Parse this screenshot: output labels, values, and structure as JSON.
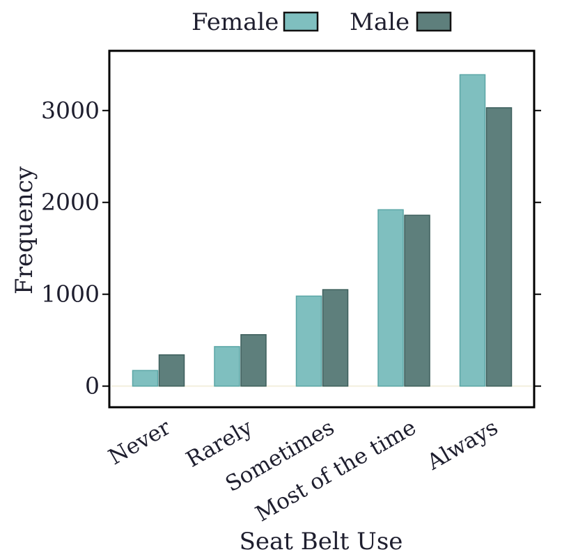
{
  "chart_data": {
    "type": "bar",
    "categories": [
      "Never",
      "Rarely",
      "Sometimes",
      "Most of the time",
      "Always"
    ],
    "series": [
      {
        "name": "Female",
        "values": [
          170,
          430,
          980,
          1920,
          3390
        ]
      },
      {
        "name": "Male",
        "values": [
          340,
          560,
          1050,
          1860,
          3030
        ]
      }
    ],
    "xlabel": "Seat Belt Use",
    "ylabel": "Frequency",
    "ylim": [
      -230,
      3650
    ],
    "yticks": [
      0,
      1000,
      2000,
      3000
    ],
    "ytick_labels": [
      "0",
      "1000",
      "2000",
      "3000"
    ],
    "legend_position": "top",
    "grid": false,
    "colors": {
      "Female": "#7fbfbf",
      "Male": "#5e7f7c"
    }
  }
}
